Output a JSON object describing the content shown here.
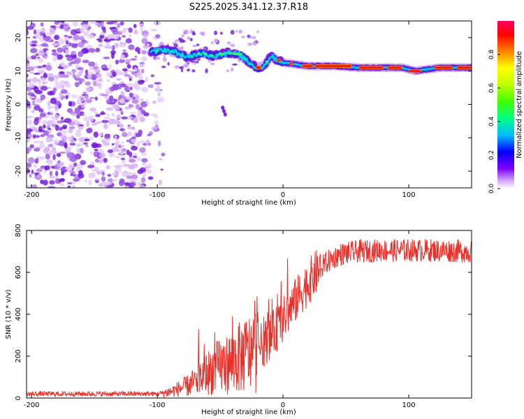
{
  "figure_title": "S225.2025.341.12.37.R18",
  "chart_data": [
    {
      "type": "heatmap",
      "name": "spectrogram",
      "xlabel": "Height of straight line (km)",
      "ylabel": "Frequency (Hz)",
      "xlim": [
        -204,
        150
      ],
      "ylim": [
        -25,
        25
      ],
      "xticks": [
        -200,
        -100,
        0,
        100
      ],
      "yticks": [
        -20,
        -10,
        0,
        10,
        20
      ],
      "colorbar": {
        "label": "Normalized spectral amplitude",
        "range": [
          0,
          1
        ],
        "ticks": [
          0.0,
          0.2,
          0.4,
          0.6,
          0.8
        ]
      },
      "ridge": {
        "description": "dominant frequency ridge",
        "points": [
          [
            -105,
            15.5
          ],
          [
            -95,
            16.5
          ],
          [
            -85,
            15.5
          ],
          [
            -75,
            14.0
          ],
          [
            -65,
            15.5
          ],
          [
            -55,
            14.5
          ],
          [
            -45,
            15.5
          ],
          [
            -35,
            15.0
          ],
          [
            -25,
            12.0
          ],
          [
            -20,
            11.0
          ],
          [
            -15,
            11.5
          ],
          [
            -10,
            14.5
          ],
          [
            -5,
            13.5
          ],
          [
            0,
            12.5
          ],
          [
            10,
            12.0
          ],
          [
            20,
            11.5
          ],
          [
            40,
            11.5
          ],
          [
            60,
            11.0
          ],
          [
            80,
            11.0
          ],
          [
            95,
            11.0
          ],
          [
            105,
            10.0
          ],
          [
            115,
            10.5
          ],
          [
            125,
            11.0
          ],
          [
            150,
            11.0
          ]
        ]
      },
      "noise_region_x": [
        -204,
        -95
      ]
    },
    {
      "type": "line",
      "name": "snr",
      "xlabel": "Height of straight line (km)",
      "ylabel": "SNR (10 * v/v)",
      "xlim": [
        -204,
        150
      ],
      "ylim": [
        0,
        800
      ],
      "xticks": [
        -200,
        -100,
        0,
        100
      ],
      "yticks": [
        0,
        200,
        400,
        600,
        800
      ],
      "color": "#e8302a",
      "trend": [
        [
          -204,
          20
        ],
        [
          -100,
          20
        ],
        [
          -90,
          30
        ],
        [
          -75,
          60
        ],
        [
          -65,
          100
        ],
        [
          -55,
          140
        ],
        [
          -45,
          160
        ],
        [
          -35,
          190
        ],
        [
          -25,
          220
        ],
        [
          -15,
          260
        ],
        [
          -5,
          330
        ],
        [
          5,
          420
        ],
        [
          15,
          510
        ],
        [
          25,
          590
        ],
        [
          35,
          650
        ],
        [
          45,
          685
        ],
        [
          60,
          700
        ],
        [
          80,
          705
        ],
        [
          100,
          705
        ],
        [
          120,
          705
        ],
        [
          150,
          700
        ]
      ]
    }
  ]
}
